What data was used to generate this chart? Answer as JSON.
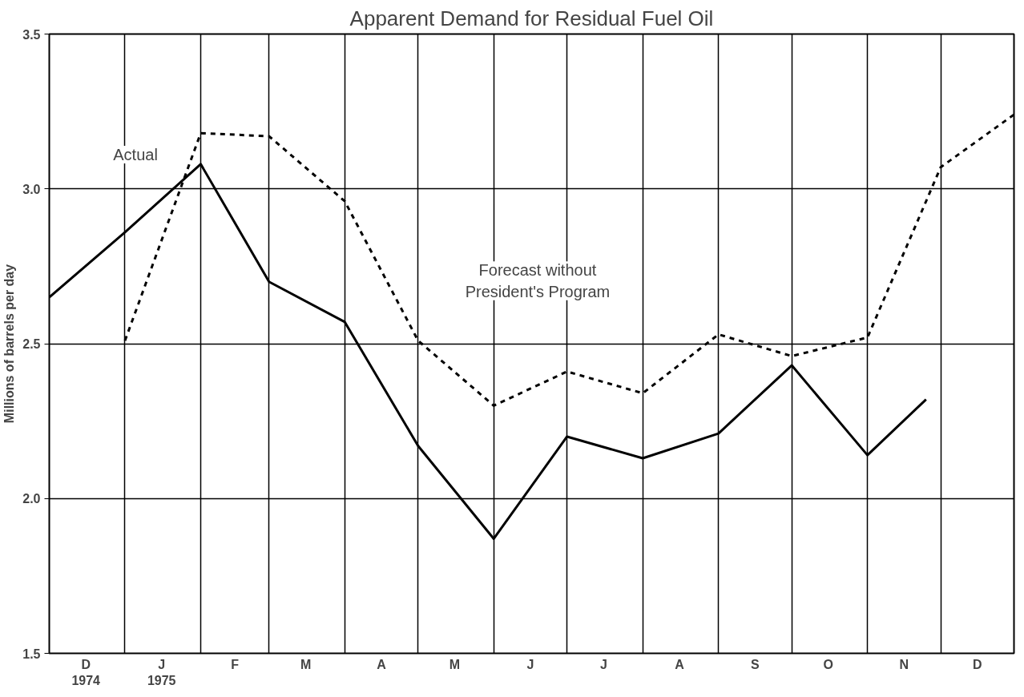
{
  "chart_data": {
    "type": "line",
    "title": "Apparent Demand for Residual Fuel Oil",
    "ylabel": "Millions of barrels per day",
    "xlim": [
      "1974-12-01",
      "1975-12-31"
    ],
    "ylim": [
      1.5,
      3.5
    ],
    "xticks": [
      {
        "value": "1974-12-01",
        "label": null
      },
      {
        "value": "1974-12-16",
        "label": "D\n1974"
      },
      {
        "value": "1975-01-01",
        "label": null
      },
      {
        "value": "1975-01-16",
        "label": "J\n1975"
      },
      {
        "value": "1975-02-01",
        "label": null
      },
      {
        "value": "1975-02-15",
        "label": "F"
      },
      {
        "value": "1975-03-01",
        "label": null
      },
      {
        "value": "1975-03-16",
        "label": "M"
      },
      {
        "value": "1975-04-01",
        "label": null
      },
      {
        "value": "1975-04-16",
        "label": "A"
      },
      {
        "value": "1975-05-01",
        "label": null
      },
      {
        "value": "1975-05-16",
        "label": "M"
      },
      {
        "value": "1975-06-01",
        "label": null
      },
      {
        "value": "1975-06-16",
        "label": "J"
      },
      {
        "value": "1975-07-01",
        "label": null
      },
      {
        "value": "1975-07-16",
        "label": "J"
      },
      {
        "value": "1975-08-01",
        "label": null
      },
      {
        "value": "1975-08-16",
        "label": "A"
      },
      {
        "value": "1975-09-01",
        "label": null
      },
      {
        "value": "1975-09-16",
        "label": "S"
      },
      {
        "value": "1975-10-01",
        "label": null
      },
      {
        "value": "1975-10-16",
        "label": "O"
      },
      {
        "value": "1975-11-01",
        "label": null
      },
      {
        "value": "1975-11-16",
        "label": "N"
      },
      {
        "value": "1975-12-01",
        "label": null
      },
      {
        "value": "1975-12-16",
        "label": "D"
      }
    ],
    "yticks": [
      {
        "value": 1.5,
        "label": "1.5"
      },
      {
        "value": 2,
        "label": "2.0"
      },
      {
        "value": 2.5,
        "label": "2.5"
      },
      {
        "value": 3,
        "label": "3.0"
      },
      {
        "value": 3.5,
        "label": "3.5"
      }
    ],
    "grid": true,
    "marker": "none",
    "series": [
      {
        "color": "#000000",
        "line_style": "solid",
        "x": [
          "1974-12-01",
          "1975-01-01",
          "1975-02-01",
          "1975-03-01",
          "1975-04-01",
          "1975-05-01",
          "1975-06-01",
          "1975-07-01",
          "1975-08-01",
          "1975-09-01",
          "1975-10-01",
          "1975-11-01",
          "1975-11-25"
        ],
        "values": [
          2.65,
          2.86,
          3.08,
          2.7,
          2.57,
          2.17,
          1.87,
          2.2,
          2.13,
          2.21,
          2.43,
          2.14,
          2.32
        ]
      },
      {
        "color": "#000000",
        "line_style": "dashed",
        "x": [
          "1975-01-01",
          "1975-02-01",
          "1975-03-01",
          "1975-04-01",
          "1975-05-01",
          "1975-06-01",
          "1975-07-01",
          "1975-08-01",
          "1975-09-01",
          "1975-10-01",
          "1975-11-01",
          "1975-12-01",
          "1975-12-31"
        ],
        "values": [
          2.51,
          3.18,
          3.17,
          2.96,
          2.51,
          2.3,
          2.41,
          2.34,
          2.53,
          2.46,
          2.52,
          3.07,
          3.24
        ]
      }
    ],
    "annotations": [
      "Actual",
      "Forecast without\nPresident's Program"
    ]
  }
}
